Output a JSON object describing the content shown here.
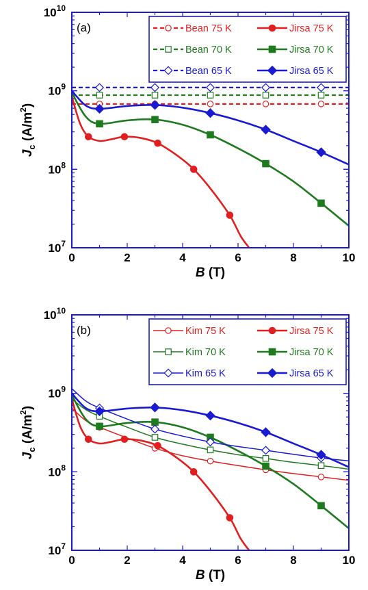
{
  "chart_data": [
    {
      "type": "line",
      "panel_label": "(a)",
      "xlabel": "B",
      "xlabel_unit": "(T)",
      "ylabel": "J",
      "ylabel_sub": "c",
      "ylabel_unit": "(A/m",
      "ylabel_unit_sup": "2",
      "ylabel_unit_close": ")",
      "xlim": [
        0,
        10
      ],
      "ylim": [
        10000000.0,
        10000000000.0
      ],
      "yscale": "log",
      "x_ticks": [
        "0",
        "2",
        "4",
        "6",
        "8",
        "10"
      ],
      "y_ticks": [
        {
          "base": "10",
          "exp": "7"
        },
        {
          "base": "10",
          "exp": "8"
        },
        {
          "base": "10",
          "exp": "9"
        },
        {
          "base": "10",
          "exp": "10"
        }
      ],
      "legend_position": "top-right",
      "series": [
        {
          "name": "Bean 75 K",
          "color": "#e02020",
          "style": "dashed",
          "marker": "circle-open",
          "x": [
            0,
            1,
            3,
            5,
            7,
            9,
            10
          ],
          "y": [
            680000000,
            680000000,
            680000000,
            680000000,
            680000000,
            680000000,
            680000000
          ],
          "marker_x": [
            1,
            3,
            5,
            7,
            9
          ]
        },
        {
          "name": "Jirsa 75 K",
          "color": "#e02020",
          "style": "solid",
          "marker": "circle-filled",
          "x": [
            0,
            0.3,
            0.6,
            1.0,
            1.4,
            1.9,
            2.5,
            3.1,
            3.8,
            4.4,
            5.0,
            5.7,
            6.1,
            6.4
          ],
          "y": [
            850000000,
            380000000,
            260000000,
            230000000,
            240000000,
            260000000,
            250000000,
            215000000,
            150000000,
            100000000,
            57000000,
            26000000,
            14000000,
            10000000
          ],
          "marker_x": [
            0.6,
            1.9,
            3.1,
            4.4,
            5.7
          ]
        },
        {
          "name": "Bean 70 K",
          "color": "#1f7a1f",
          "style": "dashed",
          "marker": "square-open",
          "x": [
            0,
            1,
            3,
            5,
            7,
            9,
            10
          ],
          "y": [
            880000000,
            880000000,
            880000000,
            880000000,
            880000000,
            880000000,
            880000000
          ],
          "marker_x": [
            1,
            3,
            5,
            7,
            9
          ]
        },
        {
          "name": "Jirsa 70 K",
          "color": "#1f7a1f",
          "style": "solid",
          "marker": "square-filled",
          "x": [
            0,
            0.5,
            1,
            2,
            3,
            4,
            5,
            6,
            7,
            8,
            9,
            10
          ],
          "y": [
            950000000,
            470000000,
            380000000,
            420000000,
            430000000,
            370000000,
            275000000,
            185000000,
            118000000,
            70000000,
            37000000,
            19000000
          ],
          "marker_x": [
            1,
            3,
            5,
            7,
            9
          ]
        },
        {
          "name": "Bean 65 K",
          "color": "#1a1ad0",
          "style": "dashed",
          "marker": "diamond-open",
          "x": [
            0,
            1,
            3,
            5,
            7,
            9,
            10
          ],
          "y": [
            1100000000,
            1100000000,
            1100000000,
            1100000000,
            1100000000,
            1100000000,
            1100000000
          ],
          "marker_x": [
            1,
            3,
            5,
            7,
            9
          ]
        },
        {
          "name": "Jirsa 65 K",
          "color": "#1a1ad0",
          "style": "solid",
          "marker": "diamond-filled",
          "x": [
            0,
            0.5,
            1,
            2,
            3,
            4,
            5,
            6,
            7,
            8,
            9,
            10
          ],
          "y": [
            1000000000,
            650000000,
            590000000,
            640000000,
            660000000,
            610000000,
            520000000,
            420000000,
            320000000,
            230000000,
            165000000,
            115000000
          ],
          "marker_x": [
            1,
            3,
            5,
            7,
            9
          ]
        }
      ]
    },
    {
      "type": "line",
      "panel_label": "(b)",
      "xlabel": "B",
      "xlabel_unit": "(T)",
      "ylabel": "J",
      "ylabel_sub": "c",
      "ylabel_unit": "(A/m",
      "ylabel_unit_sup": "2",
      "ylabel_unit_close": ")",
      "xlim": [
        0,
        10
      ],
      "ylim": [
        10000000.0,
        10000000000.0
      ],
      "yscale": "log",
      "x_ticks": [
        "0",
        "2",
        "4",
        "6",
        "8",
        "10"
      ],
      "y_ticks": [
        {
          "base": "10",
          "exp": "7"
        },
        {
          "base": "10",
          "exp": "8"
        },
        {
          "base": "10",
          "exp": "9"
        },
        {
          "base": "10",
          "exp": "10"
        }
      ],
      "legend_position": "top-right",
      "series": [
        {
          "name": "Kim 75 K",
          "color": "#e02020",
          "style": "solid-thin",
          "marker": "circle-open",
          "x": [
            0,
            0.5,
            1,
            2,
            3,
            4,
            5,
            6,
            7,
            8,
            9,
            10
          ],
          "y": [
            650000000,
            450000000,
            370000000,
            270000000,
            200000000,
            160000000,
            137000000,
            120000000,
            106000000,
            95000000,
            86000000,
            78000000
          ],
          "marker_x": [
            1,
            3,
            5,
            7,
            9
          ]
        },
        {
          "name": "Jirsa 75 K",
          "color": "#e02020",
          "style": "solid",
          "marker": "circle-filled",
          "x": [
            0,
            0.3,
            0.6,
            1.0,
            1.4,
            1.9,
            2.5,
            3.1,
            3.8,
            4.4,
            5.0,
            5.7,
            6.1,
            6.4
          ],
          "y": [
            850000000,
            380000000,
            260000000,
            230000000,
            240000000,
            260000000,
            250000000,
            215000000,
            150000000,
            100000000,
            57000000,
            26000000,
            14000000,
            10000000
          ],
          "marker_x": [
            0.6,
            1.9,
            3.1,
            4.4,
            5.7
          ]
        },
        {
          "name": "Kim 70 K",
          "color": "#1f7a1f",
          "style": "solid-thin",
          "marker": "square-open",
          "x": [
            0,
            0.5,
            1,
            2,
            3,
            4,
            5,
            6,
            7,
            8,
            9,
            10
          ],
          "y": [
            850000000,
            620000000,
            510000000,
            370000000,
            275000000,
            225000000,
            190000000,
            165000000,
            148000000,
            132000000,
            120000000,
            108000000
          ],
          "marker_x": [
            1,
            3,
            5,
            7,
            9
          ]
        },
        {
          "name": "Jirsa 70 K",
          "color": "#1f7a1f",
          "style": "solid",
          "marker": "square-filled",
          "x": [
            0,
            0.5,
            1,
            2,
            3,
            4,
            5,
            6,
            7,
            8,
            9,
            10
          ],
          "y": [
            950000000,
            470000000,
            380000000,
            420000000,
            430000000,
            370000000,
            275000000,
            185000000,
            118000000,
            70000000,
            37000000,
            19000000
          ],
          "marker_x": [
            1,
            3,
            5,
            7,
            9
          ]
        },
        {
          "name": "Kim 65 K",
          "color": "#1a1ad0",
          "style": "solid-thin",
          "marker": "diamond-open",
          "x": [
            0,
            0.5,
            1,
            2,
            3,
            4,
            5,
            6,
            7,
            8,
            9,
            10
          ],
          "y": [
            1150000000,
            800000000,
            650000000,
            470000000,
            350000000,
            285000000,
            240000000,
            210000000,
            188000000,
            167000000,
            150000000,
            138000000
          ],
          "marker_x": [
            1,
            3,
            5,
            7,
            9
          ]
        },
        {
          "name": "Jirsa 65 K",
          "color": "#1a1ad0",
          "style": "solid",
          "marker": "diamond-filled",
          "x": [
            0,
            0.5,
            1,
            2,
            3,
            4,
            5,
            6,
            7,
            8,
            9,
            10
          ],
          "y": [
            1000000000,
            650000000,
            590000000,
            640000000,
            660000000,
            610000000,
            520000000,
            420000000,
            320000000,
            230000000,
            165000000,
            115000000
          ],
          "marker_x": [
            1,
            3,
            5,
            7,
            9
          ]
        }
      ]
    }
  ]
}
